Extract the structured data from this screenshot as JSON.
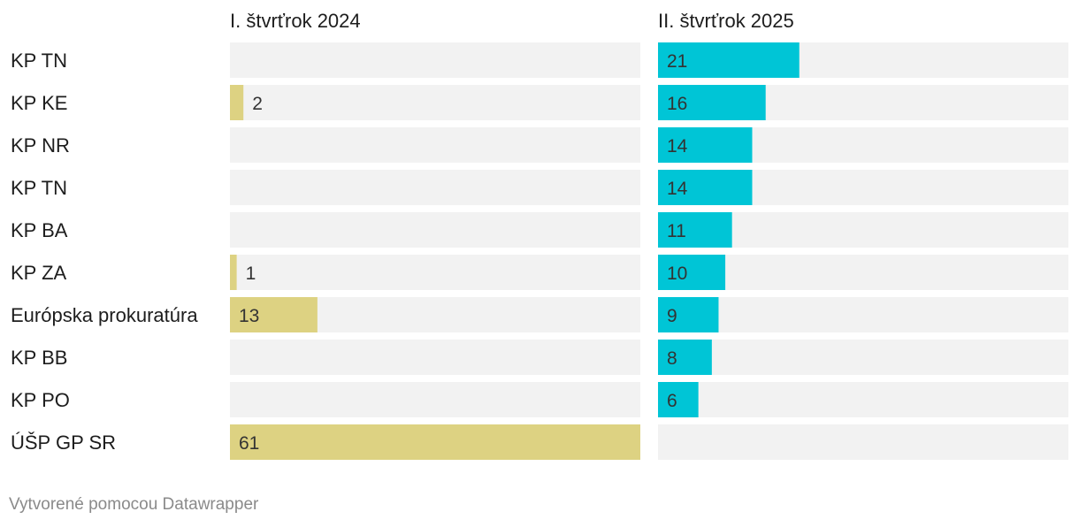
{
  "chart_data": {
    "type": "bar",
    "orientation": "horizontal",
    "layout": "split-columns",
    "categories": [
      "KP TN",
      "KP KE",
      "KP NR",
      "KP TN",
      "KP BA",
      "KP ZA",
      "Európska prokuratúra",
      "KP BB",
      "KP PO",
      "ÚŠP GP SR"
    ],
    "series": [
      {
        "name": "I. štvrťrok 2024",
        "color": "#ddd282",
        "values": [
          null,
          2,
          null,
          null,
          null,
          1,
          13,
          null,
          null,
          61
        ]
      },
      {
        "name": "II. štvrťrok 2025",
        "color": "#00c5d6",
        "values": [
          21,
          16,
          14,
          14,
          11,
          10,
          9,
          8,
          6,
          null
        ]
      }
    ],
    "xlim": [
      0,
      61
    ],
    "track_color": "#f2f2f2",
    "title": "",
    "xlabel": "",
    "ylabel": ""
  },
  "footer": {
    "credit": "Vytvorené pomocou Datawrapper"
  }
}
